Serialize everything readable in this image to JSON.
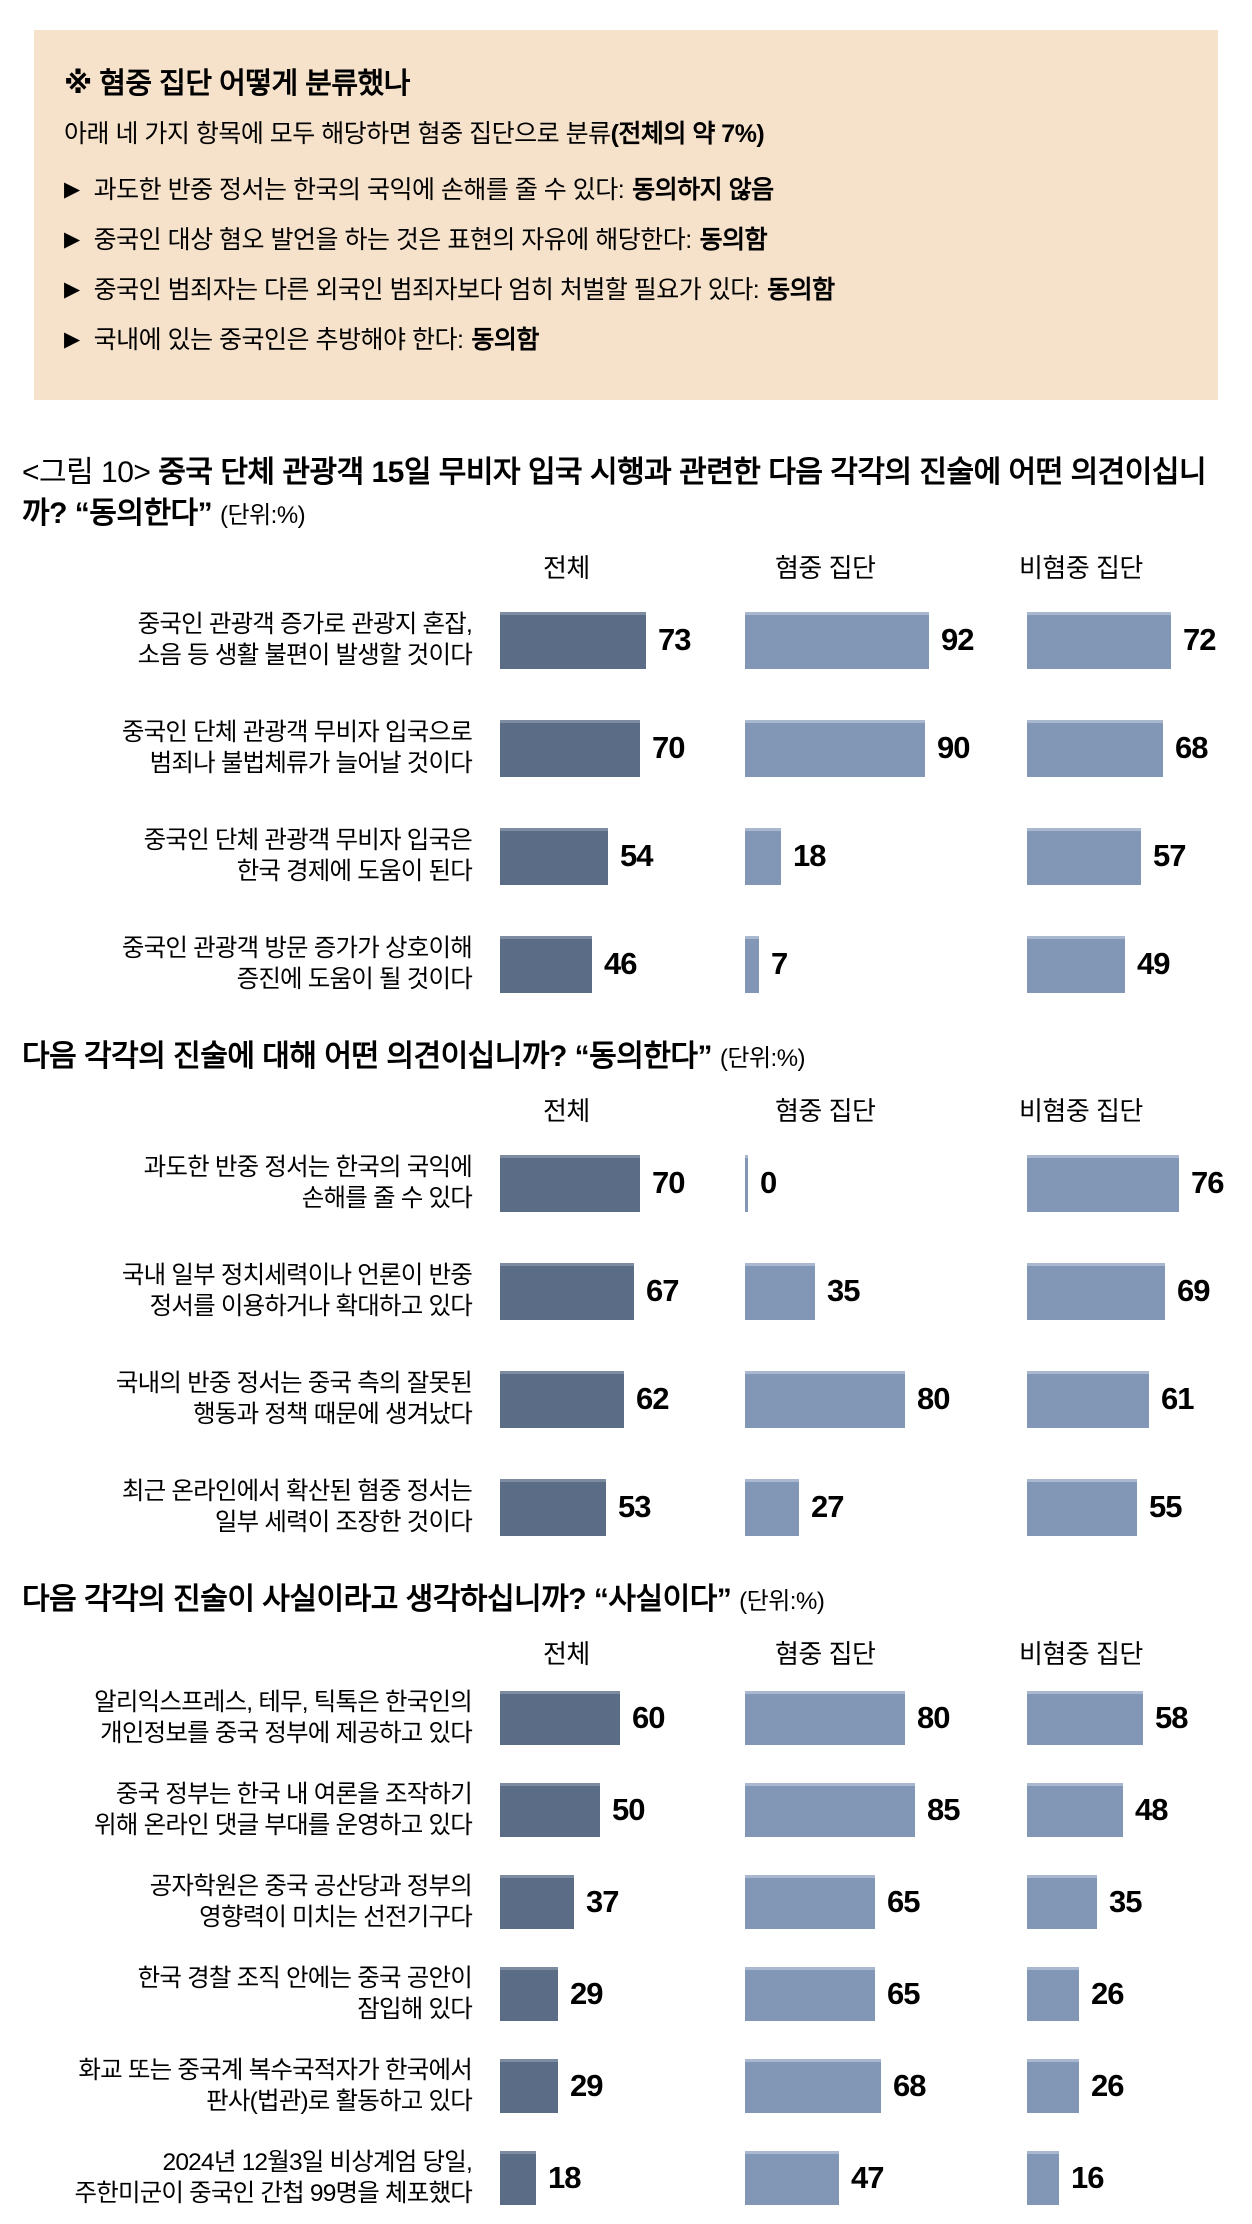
{
  "colors": {
    "box_bg": "#f6e2ca",
    "total_bar": "#5b6c87",
    "group_bar": "#8296b5"
  },
  "columns": [
    "전체",
    "혐중 집단",
    "비혐중 집단"
  ],
  "classification_box": {
    "title": "※ 혐중 집단 어떻게 분류했나",
    "subtitle": "아래 네 가지 항목에 모두 해당하면 혐중 집단으로 분류",
    "subtitle_emphasis": "(전체의 약 7%)",
    "bullet_marker": "▶",
    "criteria": [
      {
        "statement": "과도한 반중 정서는 한국의 국익에 손해를 줄 수 있다:",
        "answer": "동의하지 않음"
      },
      {
        "statement": "중국인 대상 혐오 발언을 하는 것은 표현의 자유에 해당한다:",
        "answer": "동의함"
      },
      {
        "statement": "중국인 범죄자는 다른 외국인 범죄자보다 엄히 처벌할 필요가 있다:",
        "answer": "동의함"
      },
      {
        "statement": "국내에 있는 중국인은 추방해야 한다:",
        "answer": "동의함"
      }
    ]
  },
  "chart_data": [
    {
      "type": "bar",
      "fig_label": "<그림 10>",
      "title": "중국 단체 관광객 15일 무비자 입국 시행과 관련한 다음 각각의 진술에 어떤 의견이십니까? “동의한다”",
      "unit": "(단위:%)",
      "legend_position": "top",
      "xlim": [
        0,
        100
      ],
      "categories": [
        "중국인 관광객 증가로 관광지 혼잡,\n소음 등 생활 불편이 발생할 것이다",
        "중국인 단체 관광객 무비자 입국으로\n범죄나 불법체류가 늘어날 것이다",
        "중국인 단체 관광객 무비자 입국은\n한국 경제에 도움이 된다",
        "중국인 관광객 방문 증가가 상호이해\n증진에 도움이 될 것이다"
      ],
      "series": [
        {
          "name": "전체",
          "values": [
            73,
            70,
            54,
            46
          ]
        },
        {
          "name": "혐중 집단",
          "values": [
            92,
            90,
            18,
            7
          ]
        },
        {
          "name": "비혐중 집단",
          "values": [
            72,
            68,
            57,
            49
          ]
        }
      ]
    },
    {
      "type": "bar",
      "fig_label": "",
      "title": "다음 각각의 진술에 대해 어떤 의견이십니까? “동의한다”",
      "unit": "(단위:%)",
      "legend_position": "top",
      "xlim": [
        0,
        100
      ],
      "categories": [
        "과도한 반중 정서는 한국의 국익에\n손해를 줄 수 있다",
        "국내 일부 정치세력이나 언론이 반중\n정서를 이용하거나 확대하고 있다",
        "국내의 반중 정서는 중국 측의 잘못된\n행동과 정책 때문에 생겨났다",
        "최근 온라인에서 확산된 혐중 정서는\n일부 세력이 조장한 것이다"
      ],
      "series": [
        {
          "name": "전체",
          "values": [
            70,
            67,
            62,
            53
          ]
        },
        {
          "name": "혐중 집단",
          "values": [
            0,
            35,
            80,
            27
          ]
        },
        {
          "name": "비혐중 집단",
          "values": [
            76,
            69,
            61,
            55
          ]
        }
      ]
    },
    {
      "type": "bar",
      "fig_label": "",
      "title": "다음 각각의 진술이 사실이라고 생각하십니까? “사실이다”",
      "unit": "(단위:%)",
      "legend_position": "top",
      "xlim": [
        0,
        100
      ],
      "categories": [
        "알리익스프레스, 테무, 틱톡은 한국인의\n개인정보를 중국 정부에 제공하고 있다",
        "중국 정부는 한국 내 여론을 조작하기\n위해 온라인 댓글 부대를 운영하고 있다",
        "공자학원은 중국 공산당과 정부의\n영향력이 미치는 선전기구다",
        "한국 경찰 조직 안에는 중국 공안이\n잠입해 있다",
        "화교 또는 중국계 복수국적자가 한국에서\n판사(법관)로 활동하고 있다",
        "2024년 12월3일 비상계엄 당일,\n주한미군이 중국인 간첩 99명을 체포했다"
      ],
      "series": [
        {
          "name": "전체",
          "values": [
            60,
            50,
            37,
            29,
            29,
            18
          ]
        },
        {
          "name": "혐중 집단",
          "values": [
            80,
            85,
            65,
            65,
            68,
            47
          ]
        },
        {
          "name": "비혐중 집단",
          "values": [
            58,
            48,
            35,
            26,
            26,
            16
          ]
        }
      ]
    }
  ]
}
